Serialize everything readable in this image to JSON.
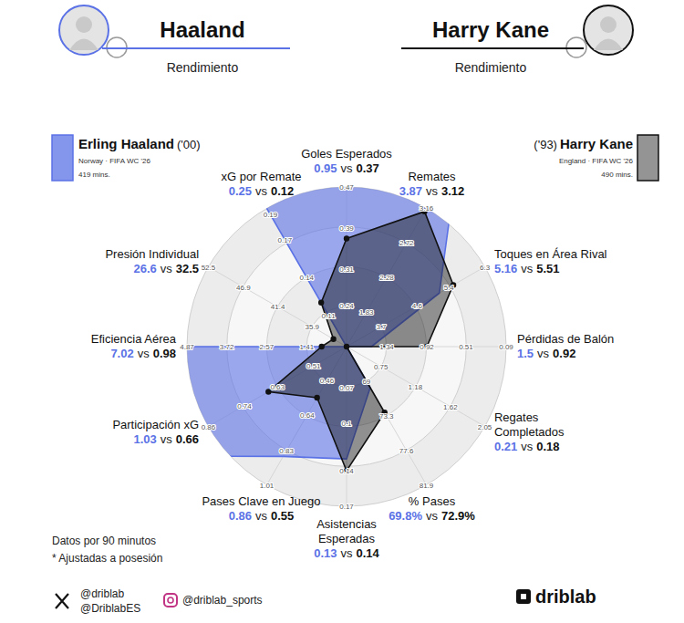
{
  "header": {
    "players": [
      {
        "title": "Haaland",
        "subtitle": "Rendimiento"
      },
      {
        "title": "Harry Kane",
        "subtitle": "Rendimiento"
      }
    ]
  },
  "chart_data": {
    "type": "radar",
    "categories": [
      "Goles Esperados",
      "Remates",
      "Toques en Área Rival",
      "Pérdidas de Balón",
      "Regates Completados",
      "% Pases",
      "Asistencias Esperadas",
      "Pases Clave en Juego",
      "Participación xG",
      "Eficiencia Aérea",
      "Presión Individual",
      "xG por Remate"
    ],
    "axes": [
      {
        "rlim": [
          0.16,
          0.47
        ],
        "rticks": [
          0.24,
          0.31,
          0.39,
          0.47
        ]
      },
      {
        "rlim": [
          1.39,
          3.16
        ],
        "rticks": [
          1.83,
          2.28,
          2.72,
          3.16
        ]
      },
      {
        "rlim": [
          2.83,
          6.3
        ],
        "rticks": [
          3.7,
          4.6,
          5.4,
          6.3
        ]
      },
      {
        "rlim": [
          1.76,
          0.09
        ],
        "rticks": [
          1.34,
          0.92,
          0.51,
          0.09
        ]
      },
      {
        "rlim": [
          0.32,
          2.05
        ],
        "rticks": [
          0.75,
          1.18,
          1.62,
          2.05
        ]
      },
      {
        "rlim": [
          64.7,
          81.9
        ],
        "rticks": [
          69,
          73.3,
          77.6,
          81.9
        ]
      },
      {
        "rlim": [
          0.035,
          0.17
        ],
        "rticks": [
          0.07,
          0.1,
          0.14,
          0.17
        ]
      },
      {
        "rlim": [
          0.28,
          1.01
        ],
        "rticks": [
          0.46,
          0.64,
          0.83,
          1.01
        ]
      },
      {
        "rlim": [
          0.4,
          0.86
        ],
        "rticks": [
          0.51,
          0.63,
          0.74,
          0.86
        ]
      },
      {
        "rlim": [
          0.26,
          4.87
        ],
        "rticks": [
          1.41,
          2.57,
          3.72,
          4.87
        ]
      },
      {
        "rlim": [
          30.4,
          52.5
        ],
        "rticks": [
          35.9,
          41.4,
          46.9,
          52.5
        ]
      },
      {
        "rlim": [
          0.085,
          0.195
        ],
        "rticks": [
          0.11,
          0.14,
          0.17,
          0.19
        ]
      }
    ],
    "series": [
      {
        "name": "Erling Haaland",
        "birth": "('00)",
        "team": "Norway · FIFA WC '26",
        "minutes": "419 mins.",
        "color": "#5b72e6",
        "marker": "none",
        "values": [
          0.95,
          3.87,
          5.16,
          1.5,
          0.21,
          69.8,
          0.13,
          0.86,
          1.03,
          7.02,
          26.6,
          0.25
        ],
        "value_labels": [
          "0.95",
          "3.87",
          "5.16",
          "1.5",
          "0.21",
          "69.8%",
          "0.13",
          "0.86",
          "1.03",
          "7.02",
          "26.6",
          "0.25"
        ]
      },
      {
        "name": "Harry Kane",
        "birth": "('93)",
        "team": "England · FIFA WC '26",
        "minutes": "490 mins.",
        "color": "#111111",
        "marker": "circle",
        "values": [
          0.37,
          3.12,
          5.51,
          0.92,
          0.18,
          72.9,
          0.14,
          0.55,
          0.66,
          0.98,
          32.5,
          0.12
        ],
        "value_labels": [
          "0.37",
          "3.12",
          "5.51",
          "0.92",
          "0.18",
          "72.9%",
          "0.14",
          "0.55",
          "0.66",
          "0.98",
          "32.5",
          "0.12"
        ]
      }
    ],
    "value_separator": "vs",
    "grid": true
  },
  "notes": [
    "Datos por 90 minutos",
    "* Ajustadas a posesión"
  ],
  "footer": {
    "x_handles": [
      "@driblab",
      "@DriblabES"
    ],
    "instagram": "@driblab_sports",
    "brand": "driblab"
  }
}
